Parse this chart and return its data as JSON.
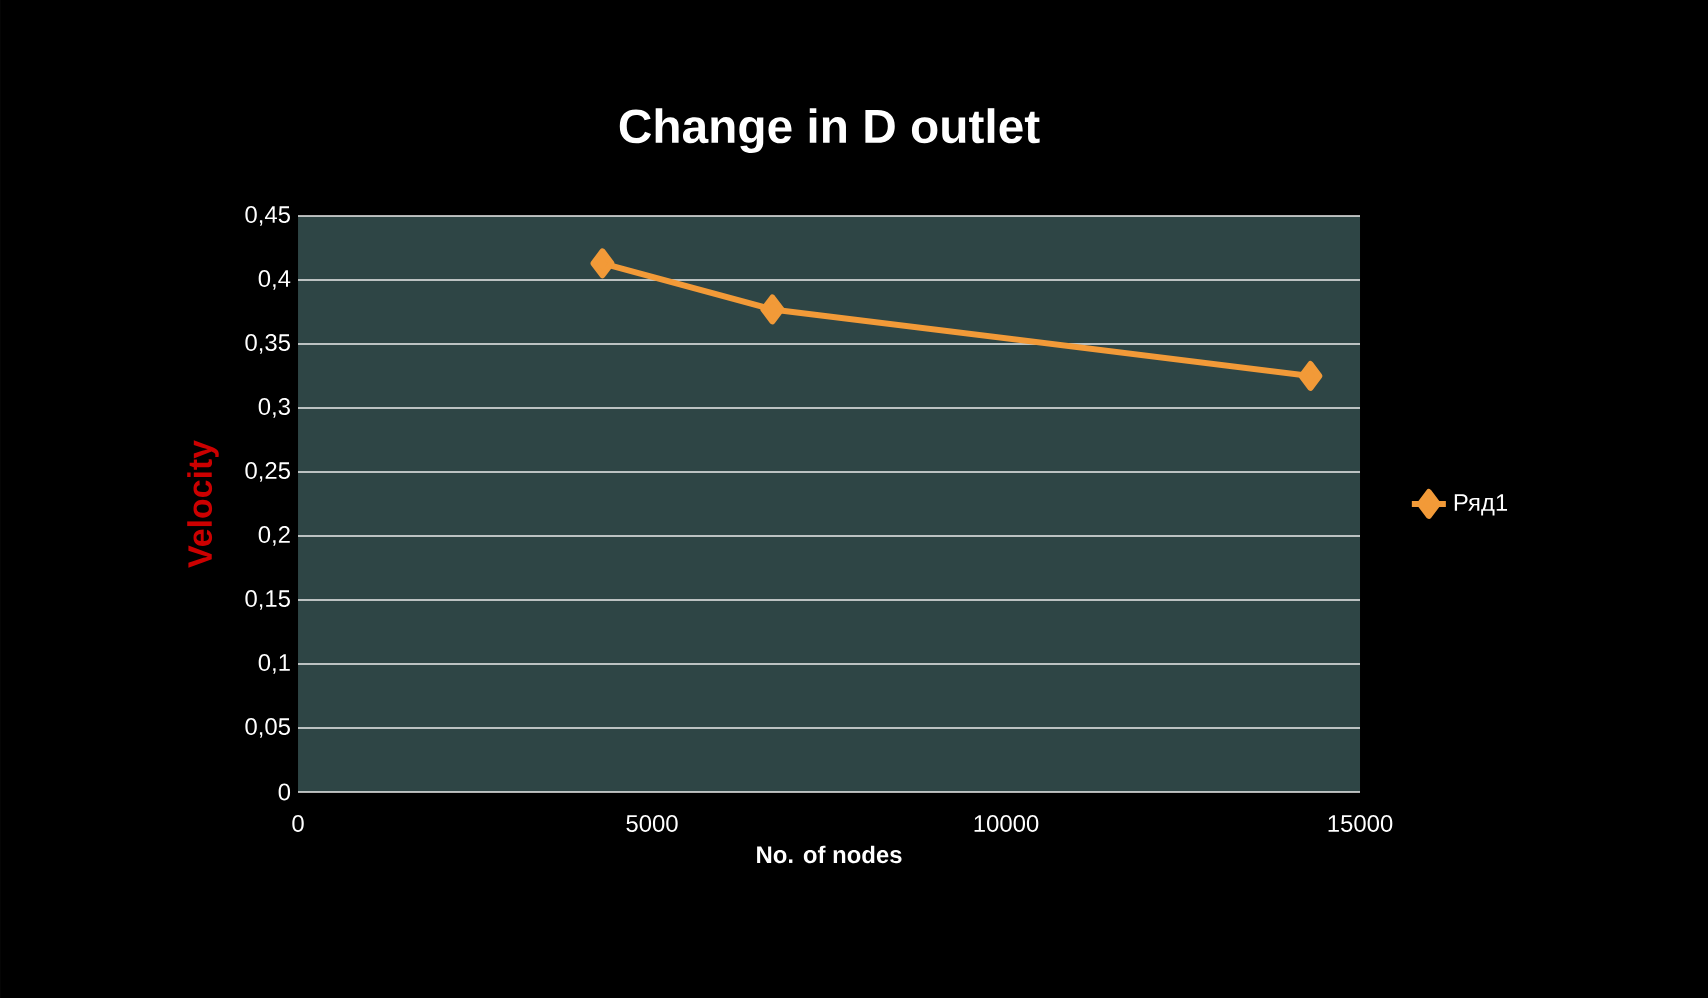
{
  "chart_data": {
    "type": "line",
    "title": "Change in D outlet",
    "xlabel": "No. of nodes",
    "ylabel": "Velocity",
    "x": [
      4300,
      6700,
      14300
    ],
    "series": [
      {
        "name": "Ряд1",
        "color": "#f29a38",
        "values": [
          0.413,
          0.377,
          0.325
        ]
      }
    ],
    "xlim": [
      0,
      15000
    ],
    "xticks": [
      0,
      5000,
      10000,
      15000
    ],
    "ylim": [
      0,
      0.45
    ],
    "yticks": [
      {
        "value": 0,
        "label": "0"
      },
      {
        "value": 0.05,
        "label": "0,05"
      },
      {
        "value": 0.1,
        "label": "0,1"
      },
      {
        "value": 0.15,
        "label": "0,15"
      },
      {
        "value": 0.2,
        "label": "0,2"
      },
      {
        "value": 0.25,
        "label": "0,25"
      },
      {
        "value": 0.3,
        "label": "0,3"
      },
      {
        "value": 0.35,
        "label": "0,35"
      },
      {
        "value": 0.4,
        "label": "0,4"
      },
      {
        "value": 0.45,
        "label": "0,45"
      }
    ],
    "grid": "y",
    "legend": "right",
    "marker": "diamond",
    "line_style": "solid"
  }
}
